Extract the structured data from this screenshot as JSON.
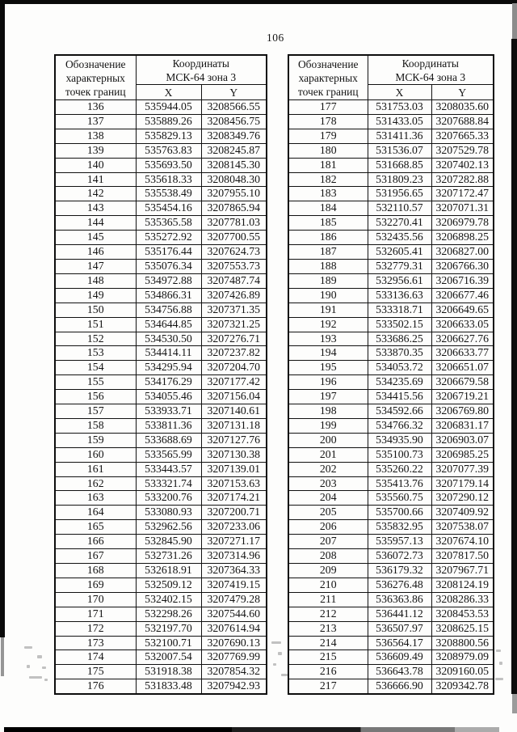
{
  "page_number": "106",
  "table_header": {
    "point_label": "Обозначение\nхарактерных\nточек границ",
    "coords_label": "Координаты\nМСК-64 зона 3",
    "x_label": "X",
    "y_label": "Y"
  },
  "left_table": {
    "rows": [
      [
        "136",
        "535944.05",
        "3208566.55"
      ],
      [
        "137",
        "535889.26",
        "3208456.75"
      ],
      [
        "138",
        "535829.13",
        "3208349.76"
      ],
      [
        "139",
        "535763.83",
        "3208245.87"
      ],
      [
        "140",
        "535693.50",
        "3208145.30"
      ],
      [
        "141",
        "535618.33",
        "3208048.30"
      ],
      [
        "142",
        "535538.49",
        "3207955.10"
      ],
      [
        "143",
        "535454.16",
        "3207865.94"
      ],
      [
        "144",
        "535365.58",
        "3207781.03"
      ],
      [
        "145",
        "535272.92",
        "3207700.55"
      ],
      [
        "146",
        "535176.44",
        "3207624.73"
      ],
      [
        "147",
        "535076.34",
        "3207553.73"
      ],
      [
        "148",
        "534972.88",
        "3207487.74"
      ],
      [
        "149",
        "534866.31",
        "3207426.89"
      ],
      [
        "150",
        "534756.88",
        "3207371.35"
      ],
      [
        "151",
        "534644.85",
        "3207321.25"
      ],
      [
        "152",
        "534530.50",
        "3207276.71"
      ],
      [
        "153",
        "534414.11",
        "3207237.82"
      ],
      [
        "154",
        "534295.94",
        "3207204.70"
      ],
      [
        "155",
        "534176.29",
        "3207177.42"
      ],
      [
        "156",
        "534055.46",
        "3207156.04"
      ],
      [
        "157",
        "533933.71",
        "3207140.61"
      ],
      [
        "158",
        "533811.36",
        "3207131.18"
      ],
      [
        "159",
        "533688.69",
        "3207127.76"
      ],
      [
        "160",
        "533565.99",
        "3207130.38"
      ],
      [
        "161",
        "533443.57",
        "3207139.01"
      ],
      [
        "162",
        "533321.74",
        "3207153.63"
      ],
      [
        "163",
        "533200.76",
        "3207174.21"
      ],
      [
        "164",
        "533080.93",
        "3207200.71"
      ],
      [
        "165",
        "532962.56",
        "3207233.06"
      ],
      [
        "166",
        "532845.90",
        "3207271.17"
      ],
      [
        "167",
        "532731.26",
        "3207314.96"
      ],
      [
        "168",
        "532618.91",
        "3207364.33"
      ],
      [
        "169",
        "532509.12",
        "3207419.15"
      ],
      [
        "170",
        "532402.15",
        "3207479.28"
      ],
      [
        "171",
        "532298.26",
        "3207544.60"
      ],
      [
        "172",
        "532197.70",
        "3207614.94"
      ],
      [
        "173",
        "532100.71",
        "3207690.13"
      ],
      [
        "174",
        "532007.54",
        "3207769.99"
      ],
      [
        "175",
        "531918.38",
        "3207854.32"
      ],
      [
        "176",
        "531833.48",
        "3207942.93"
      ]
    ]
  },
  "right_table": {
    "rows": [
      [
        "177",
        "531753.03",
        "3208035.60"
      ],
      [
        "178",
        "531433.05",
        "3207688.84"
      ],
      [
        "179",
        "531411.36",
        "3207665.33"
      ],
      [
        "180",
        "531536.07",
        "3207529.78"
      ],
      [
        "181",
        "531668.85",
        "3207402.13"
      ],
      [
        "182",
        "531809.23",
        "3207282.88"
      ],
      [
        "183",
        "531956.65",
        "3207172.47"
      ],
      [
        "184",
        "532110.57",
        "3207071.31"
      ],
      [
        "185",
        "532270.41",
        "3206979.78"
      ],
      [
        "186",
        "532435.56",
        "3206898.25"
      ],
      [
        "187",
        "532605.41",
        "3206827.00"
      ],
      [
        "188",
        "532779.31",
        "3206766.30"
      ],
      [
        "189",
        "532956.61",
        "3206716.39"
      ],
      [
        "190",
        "533136.63",
        "3206677.46"
      ],
      [
        "191",
        "533318.71",
        "3206649.65"
      ],
      [
        "192",
        "533502.15",
        "3206633.05"
      ],
      [
        "193",
        "533686.25",
        "3206627.76"
      ],
      [
        "194",
        "533870.35",
        "3206633.77"
      ],
      [
        "195",
        "534053.72",
        "3206651.07"
      ],
      [
        "196",
        "534235.69",
        "3206679.58"
      ],
      [
        "197",
        "534415.56",
        "3206719.21"
      ],
      [
        "198",
        "534592.66",
        "3206769.80"
      ],
      [
        "199",
        "534766.32",
        "3206831.17"
      ],
      [
        "200",
        "534935.90",
        "3206903.07"
      ],
      [
        "201",
        "535100.73",
        "3206985.25"
      ],
      [
        "202",
        "535260.22",
        "3207077.39"
      ],
      [
        "203",
        "535413.76",
        "3207179.14"
      ],
      [
        "204",
        "535560.75",
        "3207290.12"
      ],
      [
        "205",
        "535700.66",
        "3207409.92"
      ],
      [
        "206",
        "535832.95",
        "3207538.07"
      ],
      [
        "207",
        "535957.13",
        "3207674.10"
      ],
      [
        "208",
        "536072.73",
        "3207817.50"
      ],
      [
        "209",
        "536179.32",
        "3207967.71"
      ],
      [
        "210",
        "536276.48",
        "3208124.19"
      ],
      [
        "211",
        "536363.86",
        "3208286.33"
      ],
      [
        "212",
        "536441.12",
        "3208453.53"
      ],
      [
        "213",
        "536507.97",
        "3208625.15"
      ],
      [
        "214",
        "536564.17",
        "3208800.56"
      ],
      [
        "215",
        "536609.49",
        "3208979.09"
      ],
      [
        "216",
        "536643.78",
        "3209160.05"
      ],
      [
        "217",
        "536666.90",
        "3209342.78"
      ]
    ]
  }
}
